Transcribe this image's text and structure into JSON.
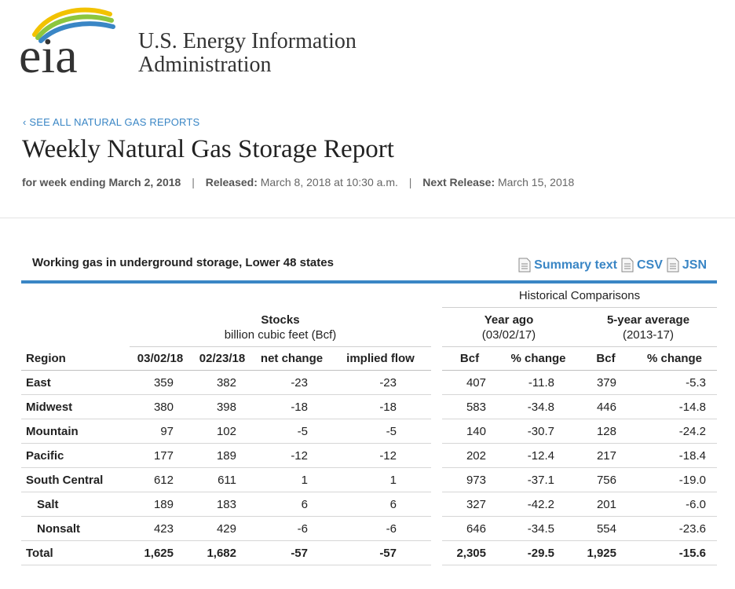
{
  "header": {
    "org_line1": "U.S. Energy Information",
    "org_line2": "Administration"
  },
  "back_link": "‹ SEE ALL NATURAL GAS REPORTS",
  "title": "Weekly Natural Gas Storage Report",
  "meta": {
    "week_label": "for week ending March 2, 2018",
    "released_label": "Released:",
    "released_value": "March 8, 2018 at 10:30 a.m.",
    "next_label": "Next Release:",
    "next_value": "March 15, 2018"
  },
  "table": {
    "caption": "Working gas in underground storage, Lower 48 states",
    "links": {
      "summary": "Summary text",
      "csv": "CSV",
      "json": "JSN"
    },
    "group_stocks": "Stocks",
    "group_stocks_unit": "billion cubic feet (Bcf)",
    "group_hist": "Historical Comparisons",
    "group_year_ago": "Year ago",
    "group_year_ago_date": "(03/02/17)",
    "group_five_year": "5-year average",
    "group_five_year_range": "(2013-17)",
    "columns": [
      "Region",
      "03/02/18",
      "02/23/18",
      "net change",
      "implied flow",
      "Bcf",
      "% change",
      "Bcf",
      "% change"
    ],
    "rows": [
      {
        "region": "East",
        "sub": false,
        "v": [
          "359",
          "382",
          "-23",
          "-23",
          "407",
          "-11.8",
          "379",
          "-5.3"
        ]
      },
      {
        "region": "Midwest",
        "sub": false,
        "v": [
          "380",
          "398",
          "-18",
          "-18",
          "583",
          "-34.8",
          "446",
          "-14.8"
        ]
      },
      {
        "region": "Mountain",
        "sub": false,
        "v": [
          "97",
          "102",
          "-5",
          "-5",
          "140",
          "-30.7",
          "128",
          "-24.2"
        ]
      },
      {
        "region": "Pacific",
        "sub": false,
        "v": [
          "177",
          "189",
          "-12",
          "-12",
          "202",
          "-12.4",
          "217",
          "-18.4"
        ]
      },
      {
        "region": "South Central",
        "sub": false,
        "v": [
          "612",
          "611",
          "1",
          "1",
          "973",
          "-37.1",
          "756",
          "-19.0"
        ]
      },
      {
        "region": "Salt",
        "sub": true,
        "v": [
          "189",
          "183",
          "6",
          "6",
          "327",
          "-42.2",
          "201",
          "-6.0"
        ]
      },
      {
        "region": "Nonsalt",
        "sub": true,
        "v": [
          "423",
          "429",
          "-6",
          "-6",
          "646",
          "-34.5",
          "554",
          "-23.6"
        ]
      },
      {
        "region": "Total",
        "sub": false,
        "total": true,
        "v": [
          "1,625",
          "1,682",
          "-57",
          "-57",
          "2,305",
          "-29.5",
          "1,925",
          "-15.6"
        ]
      }
    ]
  },
  "colors": {
    "accent": "#3a86c5",
    "logo_green": "#8cc63f",
    "logo_yellow": "#f2c200",
    "logo_blue": "#3a86c5"
  }
}
